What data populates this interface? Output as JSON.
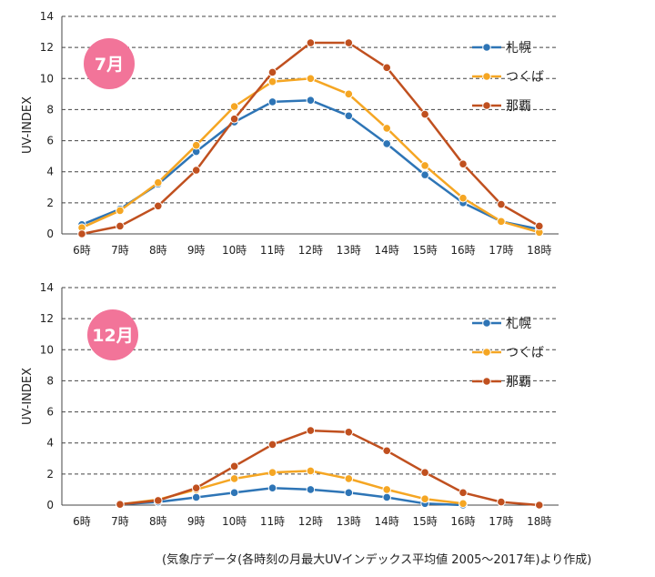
{
  "source_note": "(気象庁データ(各時刻の月最大UVインデックス平均値 2005～2017年)より作成)",
  "colors": {
    "sapporo": "#2E75B6",
    "tsukuba": "#F5A623",
    "naha": "#C0501F",
    "badge": "#F27499"
  },
  "chart_data": [
    {
      "type": "line",
      "badge": "7月",
      "ylabel": "UV-INDEX",
      "ylim": [
        0,
        14
      ],
      "yticks": [
        "0",
        "2",
        "4",
        "6",
        "8",
        "10",
        "12",
        "14"
      ],
      "grid": "dashed horizontal",
      "legend_position": "right",
      "categories": [
        "6時",
        "7時",
        "8時",
        "9時",
        "10時",
        "11時",
        "12時",
        "13時",
        "14時",
        "15時",
        "16時",
        "17時",
        "18時"
      ],
      "series": [
        {
          "name": "札幌",
          "color_key": "sapporo",
          "values": [
            0.6,
            1.6,
            3.2,
            5.3,
            7.2,
            8.5,
            8.6,
            7.6,
            5.8,
            3.8,
            2.0,
            0.8,
            0.3
          ]
        },
        {
          "name": "つくば",
          "color_key": "tsukuba",
          "values": [
            0.4,
            1.5,
            3.3,
            5.7,
            8.2,
            9.8,
            10.0,
            9.0,
            6.8,
            4.4,
            2.3,
            0.8,
            0.1
          ]
        },
        {
          "name": "那覇",
          "color_key": "naha",
          "values": [
            0.0,
            0.5,
            1.8,
            4.1,
            7.4,
            10.4,
            12.3,
            12.3,
            10.7,
            7.7,
            4.5,
            1.9,
            0.5
          ]
        }
      ]
    },
    {
      "type": "line",
      "badge": "12月",
      "ylabel": "UV-INDEX",
      "ylim": [
        0,
        14
      ],
      "yticks": [
        "0",
        "2",
        "4",
        "6",
        "8",
        "10",
        "12",
        "14"
      ],
      "grid": "dashed horizontal",
      "legend_position": "right",
      "categories": [
        "6時",
        "7時",
        "8時",
        "9時",
        "10時",
        "11時",
        "12時",
        "13時",
        "14時",
        "15時",
        "16時",
        "17時",
        "18時"
      ],
      "series": [
        {
          "name": "札幌",
          "color_key": "sapporo",
          "values": [
            null,
            0.05,
            0.2,
            0.5,
            0.8,
            1.1,
            1.0,
            0.8,
            0.5,
            0.1,
            0.0,
            null,
            null
          ]
        },
        {
          "name": "つくば",
          "color_key": "tsukuba",
          "values": [
            null,
            0.05,
            0.35,
            1.0,
            1.7,
            2.1,
            2.2,
            1.7,
            1.0,
            0.4,
            0.1,
            null,
            null
          ]
        },
        {
          "name": "那覇",
          "color_key": "naha",
          "values": [
            null,
            0.05,
            0.3,
            1.1,
            2.5,
            3.9,
            4.8,
            4.7,
            3.5,
            2.1,
            0.8,
            0.2,
            0.0
          ]
        }
      ]
    }
  ]
}
